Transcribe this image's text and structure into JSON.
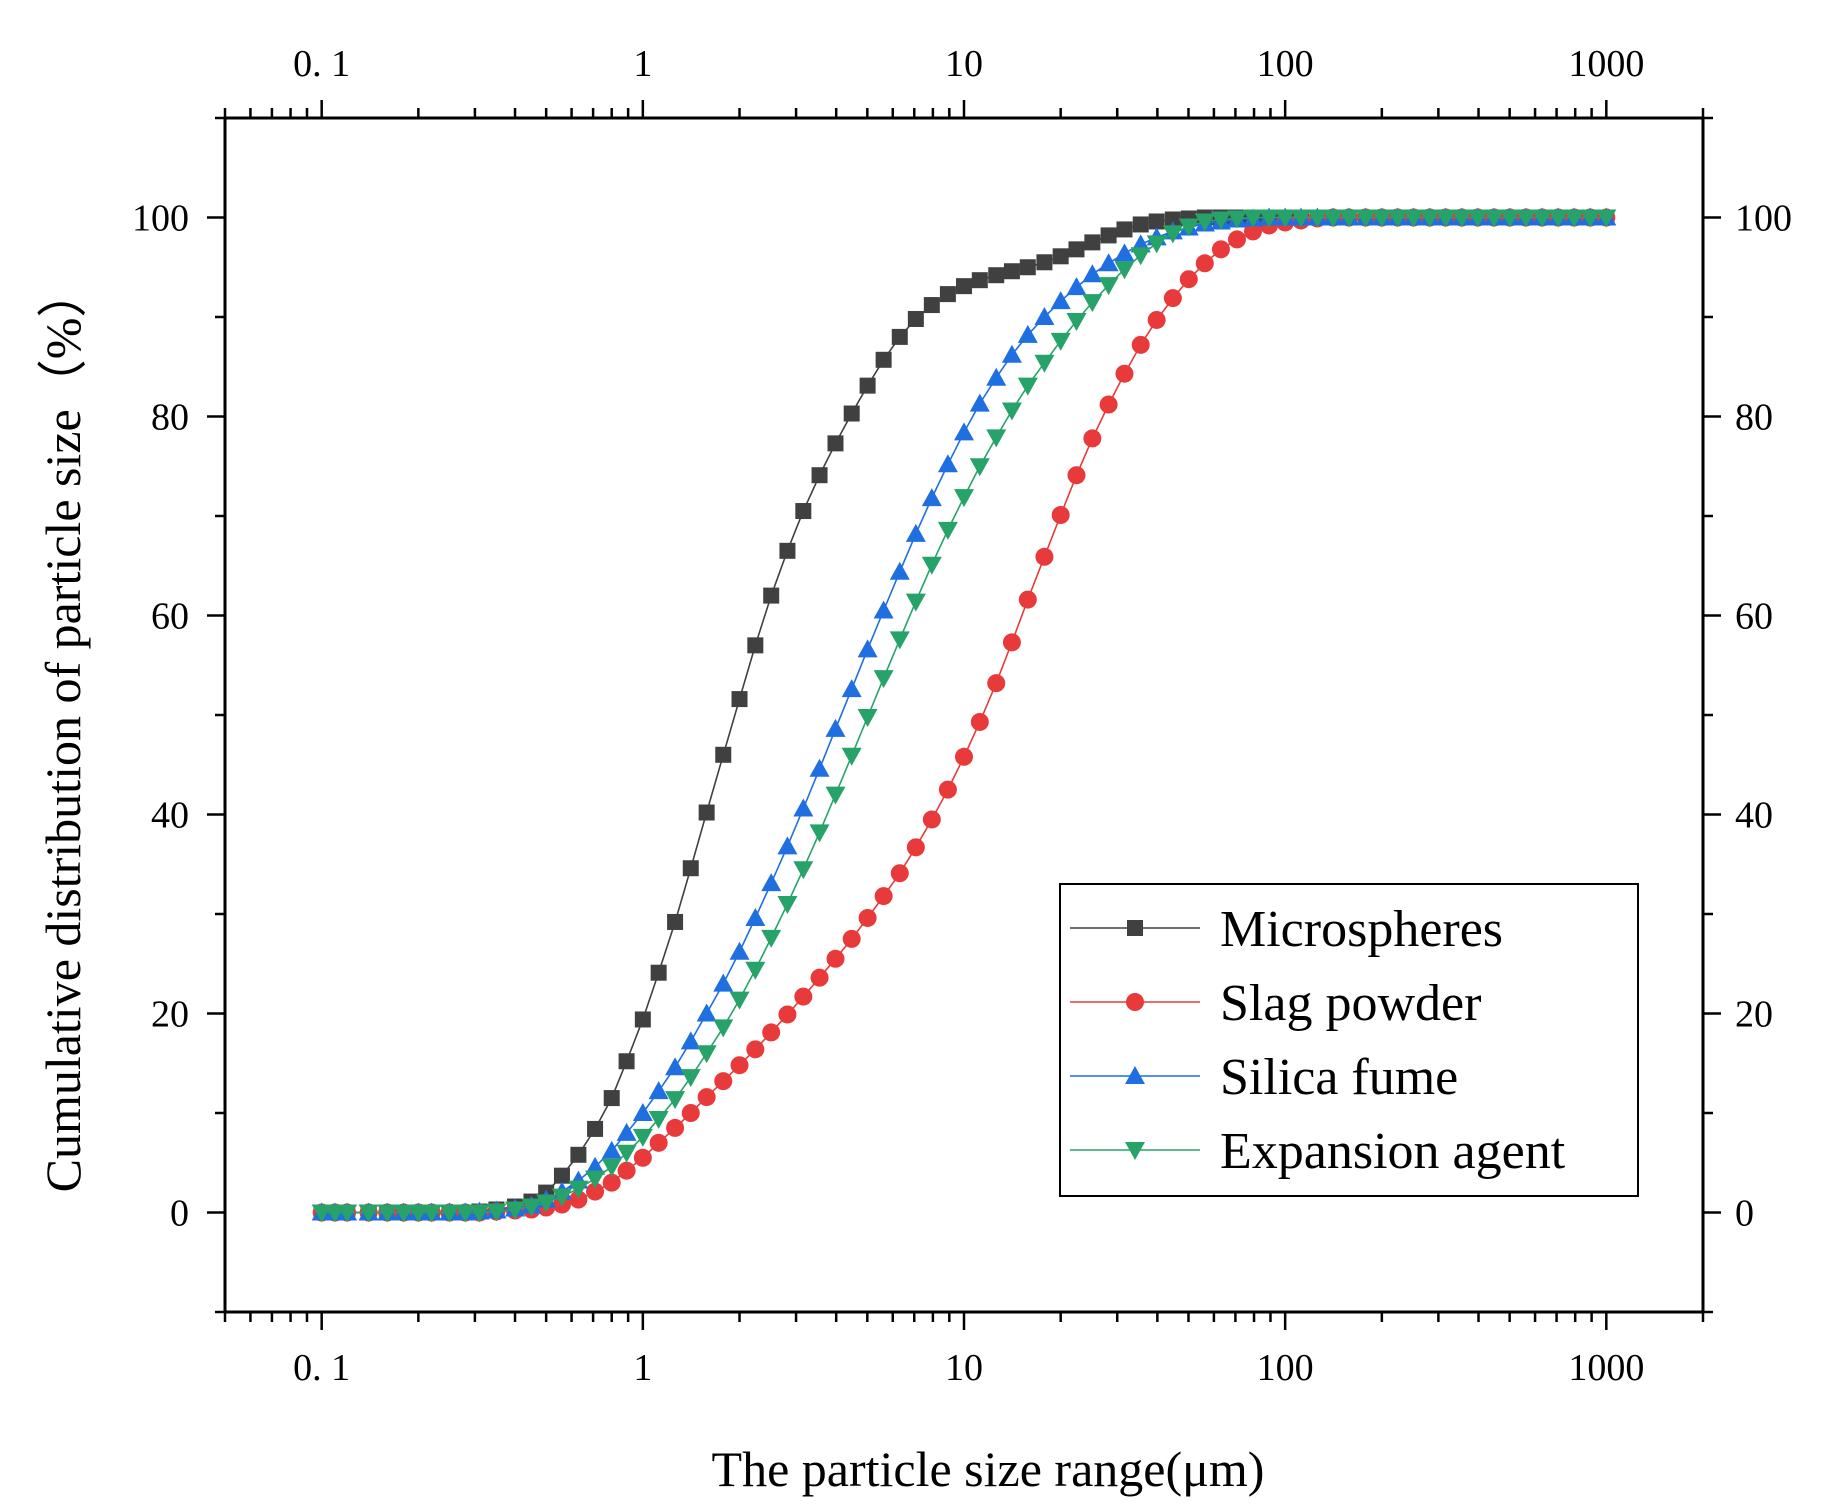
{
  "chart_data": {
    "type": "line",
    "title": "",
    "xlabel": "The particle size  range(μm)",
    "ylabel": "Cumulative distribution of particle size（%）",
    "x_scale": "log",
    "xlim": [
      0.05,
      2000
    ],
    "ylim": [
      -10,
      110
    ],
    "x_ticks": [
      0.1,
      1,
      10,
      100,
      1000
    ],
    "x_tick_labels": [
      "0. 1",
      "1",
      "10",
      "100",
      "1000"
    ],
    "y_ticks": [
      0,
      20,
      40,
      60,
      80,
      100
    ],
    "y_tick_labels": [
      "0",
      "20",
      "40",
      "60",
      "80",
      "100"
    ],
    "grid": false,
    "legend_position": "bottom-right",
    "x": [
      0.1,
      0.11,
      0.12,
      0.14,
      0.16,
      0.18,
      0.2,
      0.22,
      0.25,
      0.28,
      0.31,
      0.35,
      0.4,
      0.45,
      0.5,
      0.56,
      0.63,
      0.71,
      0.8,
      0.89,
      1.0,
      1.12,
      1.26,
      1.41,
      1.58,
      1.78,
      2.0,
      2.24,
      2.51,
      2.82,
      3.16,
      3.55,
      3.98,
      4.47,
      5.01,
      5.62,
      6.31,
      7.08,
      7.94,
      8.91,
      10.0,
      11.2,
      12.6,
      14.1,
      15.8,
      17.8,
      20.0,
      22.4,
      25.1,
      28.2,
      31.6,
      35.5,
      39.8,
      44.7,
      50.1,
      56.2,
      63.1,
      70.8,
      79.4,
      89.1,
      100,
      112,
      126,
      141,
      158,
      178,
      200,
      224,
      251,
      282,
      316,
      355,
      398,
      447,
      501,
      562,
      631,
      708,
      794,
      891,
      1000
    ],
    "series": [
      {
        "name": "Microspheres",
        "color": "#404040",
        "marker": "square",
        "values": [
          0,
          0,
          0,
          0,
          0,
          0,
          0,
          0,
          0,
          0,
          0.1,
          0.3,
          0.6,
          1.1,
          2.0,
          3.7,
          5.8,
          8.4,
          11.5,
          15.2,
          19.4,
          24.1,
          29.2,
          34.6,
          40.2,
          46.0,
          51.6,
          57.0,
          62.0,
          66.5,
          70.5,
          74.1,
          77.3,
          80.3,
          83.1,
          85.7,
          88.0,
          89.8,
          91.2,
          92.3,
          93.1,
          93.7,
          94.2,
          94.6,
          95.0,
          95.5,
          96.1,
          96.8,
          97.5,
          98.2,
          98.8,
          99.3,
          99.6,
          99.8,
          99.9,
          100,
          100,
          100,
          100,
          100,
          100,
          100,
          100,
          100,
          100,
          100,
          100,
          100,
          100,
          100,
          100,
          100,
          100,
          100,
          100,
          100,
          100,
          100,
          100,
          100,
          100
        ]
      },
      {
        "name": "Slag powder",
        "color": "#e83a3a",
        "marker": "circle",
        "values": [
          0,
          0,
          0,
          0,
          0,
          0,
          0,
          0,
          0,
          0,
          0,
          0.1,
          0.2,
          0.3,
          0.5,
          0.8,
          1.3,
          2.1,
          3.0,
          4.2,
          5.5,
          7.0,
          8.5,
          10.0,
          11.6,
          13.2,
          14.8,
          16.4,
          18.1,
          19.9,
          21.7,
          23.6,
          25.5,
          27.5,
          29.6,
          31.8,
          34.1,
          36.7,
          39.5,
          42.5,
          45.8,
          49.3,
          53.2,
          57.3,
          61.6,
          65.9,
          70.1,
          74.1,
          77.8,
          81.2,
          84.3,
          87.2,
          89.7,
          91.9,
          93.8,
          95.4,
          96.8,
          97.8,
          98.6,
          99.2,
          99.5,
          99.7,
          99.9,
          100,
          100,
          100,
          100,
          100,
          100,
          100,
          100,
          100,
          100,
          100,
          100,
          100,
          100,
          100,
          100,
          100,
          100
        ]
      },
      {
        "name": "Silica fume",
        "color": "#1f6fe0",
        "marker": "triangle-up",
        "values": [
          0,
          0,
          0,
          0,
          0,
          0,
          0,
          0,
          0,
          0,
          0.1,
          0.2,
          0.4,
          0.7,
          1.3,
          2.1,
          3.2,
          4.6,
          6.2,
          8.0,
          10.0,
          12.2,
          14.6,
          17.2,
          20.0,
          23.0,
          26.2,
          29.6,
          33.1,
          36.8,
          40.6,
          44.6,
          48.6,
          52.6,
          56.6,
          60.5,
          64.4,
          68.2,
          71.8,
          75.2,
          78.4,
          81.3,
          83.9,
          86.2,
          88.2,
          90.0,
          91.6,
          93.0,
          94.3,
          95.4,
          96.4,
          97.3,
          98.0,
          98.6,
          99.0,
          99.4,
          99.6,
          99.8,
          99.9,
          100,
          100,
          100,
          100,
          100,
          100,
          100,
          100,
          100,
          100,
          100,
          100,
          100,
          100,
          100,
          100,
          100,
          100,
          100,
          100,
          100,
          100
        ]
      },
      {
        "name": "Expansion agent",
        "color": "#27a36a",
        "marker": "triangle-down",
        "values": [
          0,
          0,
          0,
          0,
          0,
          0,
          0,
          0,
          0,
          0,
          0,
          0.1,
          0.3,
          0.6,
          1.0,
          1.6,
          2.4,
          3.4,
          4.6,
          6.0,
          7.6,
          9.4,
          11.4,
          13.6,
          16.0,
          18.6,
          21.4,
          24.4,
          27.6,
          31.0,
          34.5,
          38.2,
          42.0,
          45.9,
          49.8,
          53.7,
          57.6,
          61.4,
          65.1,
          68.6,
          71.9,
          75.0,
          77.9,
          80.6,
          83.1,
          85.4,
          87.6,
          89.6,
          91.5,
          93.2,
          94.8,
          96.2,
          97.4,
          98.4,
          99.1,
          99.6,
          99.8,
          99.9,
          100,
          100,
          100,
          100,
          100,
          100,
          100,
          100,
          100,
          100,
          100,
          100,
          100,
          100,
          100,
          100,
          100,
          100,
          100,
          100,
          100,
          100,
          100
        ]
      }
    ]
  }
}
